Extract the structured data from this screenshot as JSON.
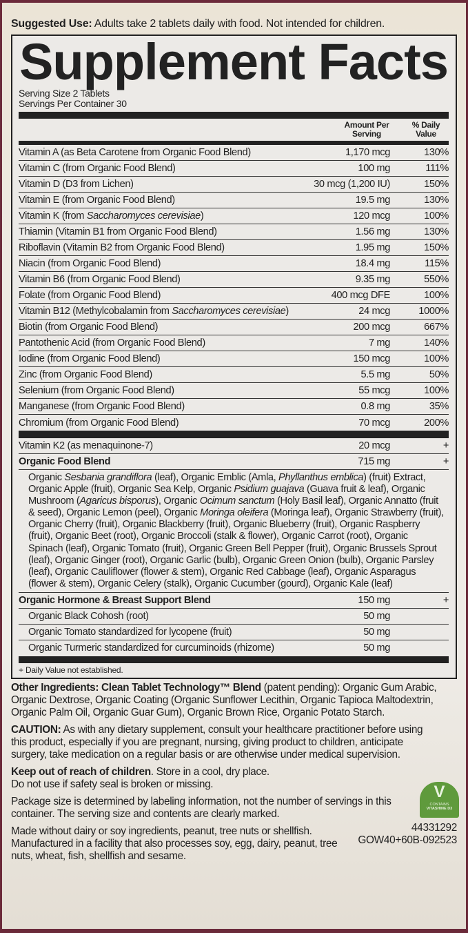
{
  "suggested_use": {
    "label": "Suggested Use:",
    "text": " Adults take 2 tablets daily with food. Not intended for children."
  },
  "title": "Supplement Facts",
  "serving_size": "Serving Size 2 Tablets",
  "servings_per_container": "Servings Per Container 30",
  "headers": {
    "amount": "Amount Per Serving",
    "daily_value": "% Daily Value"
  },
  "nutrients": [
    {
      "name": [
        {
          "t": "Vitamin A (as Beta Carotene from Organic Food Blend)"
        }
      ],
      "amount": "1,170 mcg",
      "dv": "130%"
    },
    {
      "name": [
        {
          "t": "Vitamin C (from Organic Food Blend)"
        }
      ],
      "amount": "100 mg",
      "dv": "111%"
    },
    {
      "name": [
        {
          "t": "Vitamin D (D3 from Lichen)"
        }
      ],
      "amount": "30 mcg (1,200 IU)",
      "dv": "150%"
    },
    {
      "name": [
        {
          "t": "Vitamin E (from Organic Food Blend)"
        }
      ],
      "amount": "19.5 mg",
      "dv": "130%"
    },
    {
      "name": [
        {
          "t": "Vitamin K (from "
        },
        {
          "t": "Saccharomyces cerevisiae",
          "i": true
        },
        {
          "t": ")"
        }
      ],
      "amount": "120 mcg",
      "dv": "100%"
    },
    {
      "name": [
        {
          "t": "Thiamin (Vitamin B1 from Organic Food Blend)"
        }
      ],
      "amount": "1.56 mg",
      "dv": "130%"
    },
    {
      "name": [
        {
          "t": "Riboflavin (Vitamin B2 from Organic Food Blend)"
        }
      ],
      "amount": "1.95 mg",
      "dv": "150%"
    },
    {
      "name": [
        {
          "t": "Niacin (from Organic Food Blend)"
        }
      ],
      "amount": "18.4 mg",
      "dv": "115%"
    },
    {
      "name": [
        {
          "t": "Vitamin B6 (from Organic Food Blend)"
        }
      ],
      "amount": "9.35 mg",
      "dv": "550%"
    },
    {
      "name": [
        {
          "t": "Folate (from Organic Food Blend)"
        }
      ],
      "amount": "400 mcg DFE",
      "dv": "100%"
    },
    {
      "name": [
        {
          "t": "Vitamin B12 (Methylcobalamin from "
        },
        {
          "t": "Saccharomyces cerevisiae",
          "i": true
        },
        {
          "t": ")"
        }
      ],
      "amount": "24 mcg",
      "dv": "1000%"
    },
    {
      "name": [
        {
          "t": "Biotin (from Organic Food Blend)"
        }
      ],
      "amount": "200 mcg",
      "dv": "667%"
    },
    {
      "name": [
        {
          "t": "Pantothenic Acid (from Organic Food Blend)"
        }
      ],
      "amount": "7 mg",
      "dv": "140%"
    },
    {
      "name": [
        {
          "t": "Iodine (from Organic Food Blend)"
        }
      ],
      "amount": "150 mcg",
      "dv": "100%"
    },
    {
      "name": [
        {
          "t": "Zinc (from Organic Food Blend)"
        }
      ],
      "amount": "5.5 mg",
      "dv": "50%"
    },
    {
      "name": [
        {
          "t": "Selenium (from Organic Food Blend)"
        }
      ],
      "amount": "55 mcg",
      "dv": "100%"
    },
    {
      "name": [
        {
          "t": "Manganese (from Organic Food Blend)"
        }
      ],
      "amount": "0.8 mg",
      "dv": "35%"
    },
    {
      "name": [
        {
          "t": "Chromium (from Organic Food Blend)"
        }
      ],
      "amount": "70 mcg",
      "dv": "200%"
    }
  ],
  "other_rows": [
    {
      "name": [
        {
          "t": "Vitamin K2 (as menaquinone-7)"
        }
      ],
      "amount": "20 mcg",
      "dv": "+"
    },
    {
      "name": [
        {
          "t": "Organic Food Blend",
          "b": true
        }
      ],
      "amount": "715 mg",
      "dv": "+"
    }
  ],
  "food_blend_ingredients": [
    {
      "t": "Organic "
    },
    {
      "t": "Sesbania grandiflora",
      "i": true
    },
    {
      "t": " (leaf), Organic Emblic (Amla, "
    },
    {
      "t": "Phyllanthus emblica",
      "i": true
    },
    {
      "t": ") (fruit) Extract, Organic Apple (fruit), Organic Sea Kelp, Organic "
    },
    {
      "t": "Psidium guajava",
      "i": true
    },
    {
      "t": " (Guava fruit & leaf), Organic Mushroom ("
    },
    {
      "t": "Agaricus bisporus",
      "i": true
    },
    {
      "t": "), Organic "
    },
    {
      "t": "Ocimum sanctum",
      "i": true
    },
    {
      "t": " (Holy Basil leaf), Organic Annatto (fruit & seed), Organic Lemon (peel), Organic "
    },
    {
      "t": "Moringa oleifera",
      "i": true
    },
    {
      "t": " (Moringa leaf), Organic Strawberry (fruit), Organic Cherry (fruit), Organic Blackberry (fruit), Organic Blueberry (fruit), Organic Raspberry (fruit), Organic Beet (root), Organic Broccoli (stalk & flower), Organic Carrot (root), Organic Spinach (leaf), Organic Tomato (fruit), Organic Green Bell Pepper (fruit), Organic Brussels Sprout (leaf), Organic Ginger (root), Organic Garlic (bulb), Organic Green Onion (bulb), Organic Parsley (leaf), Organic Cauliflower (flower & stem), Organic Red Cabbage (leaf), Organic Asparagus (flower & stem), Organic Celery (stalk), Organic Cucumber (gourd), Organic Kale (leaf)"
    }
  ],
  "hormone_blend": {
    "name": [
      {
        "t": "Organic Hormone & Breast Support Blend",
        "b": true
      }
    ],
    "amount": "150 mg",
    "dv": "+"
  },
  "hormone_items": [
    {
      "name": [
        {
          "t": "Organic Black Cohosh (root)"
        }
      ],
      "amount": "50 mg",
      "dv": ""
    },
    {
      "name": [
        {
          "t": "Organic Tomato standardized for lycopene (fruit)"
        }
      ],
      "amount": "50 mg",
      "dv": ""
    },
    {
      "name": [
        {
          "t": "Organic Turmeric standardized for curcuminoids (rhizome)"
        }
      ],
      "amount": "50 mg",
      "dv": ""
    }
  ],
  "footnote": "+ Daily Value not established.",
  "other_ingredients": {
    "label": "Other Ingredients: Clean Tablet Technology™ Blend",
    "text": " (patent pending): Organic Gum Arabic, Organic Dextrose, Organic Coating (Organic Sunflower Lecithin, Organic Tapioca Maltodextrin, Organic Palm Oil, Organic Guar Gum), Organic Brown Rice, Organic Potato Starch."
  },
  "caution": {
    "label": "CAUTION:",
    "text": " As with any dietary supplement, consult your healthcare practitioner before using this product, especially if you are pregnant, nursing, giving product to children, anticipate surgery, take medication on a regular basis or are otherwise under medical supervision."
  },
  "keep_out": {
    "label": "Keep out of reach of children",
    "text": ". Store in a cool, dry place.",
    "line2": "Do not use if safety seal is broken or missing."
  },
  "package_note": "Package size is determined by labeling information, not the number of servings in this container. The serving size and contents are clearly marked.",
  "allergen_note": "Made without dairy or soy ingredients, peanut, tree nuts or shellfish. Manufactured in a facility that also processes soy, egg, dairy, peanut, tree nuts, wheat, fish, shellfish and sesame.",
  "badge": {
    "line1": "CONTAINS",
    "line2": "VITASHINE D3",
    "color": "#5f9a3c"
  },
  "codes": [
    "44331292",
    "GOW40+60B-092523"
  ]
}
